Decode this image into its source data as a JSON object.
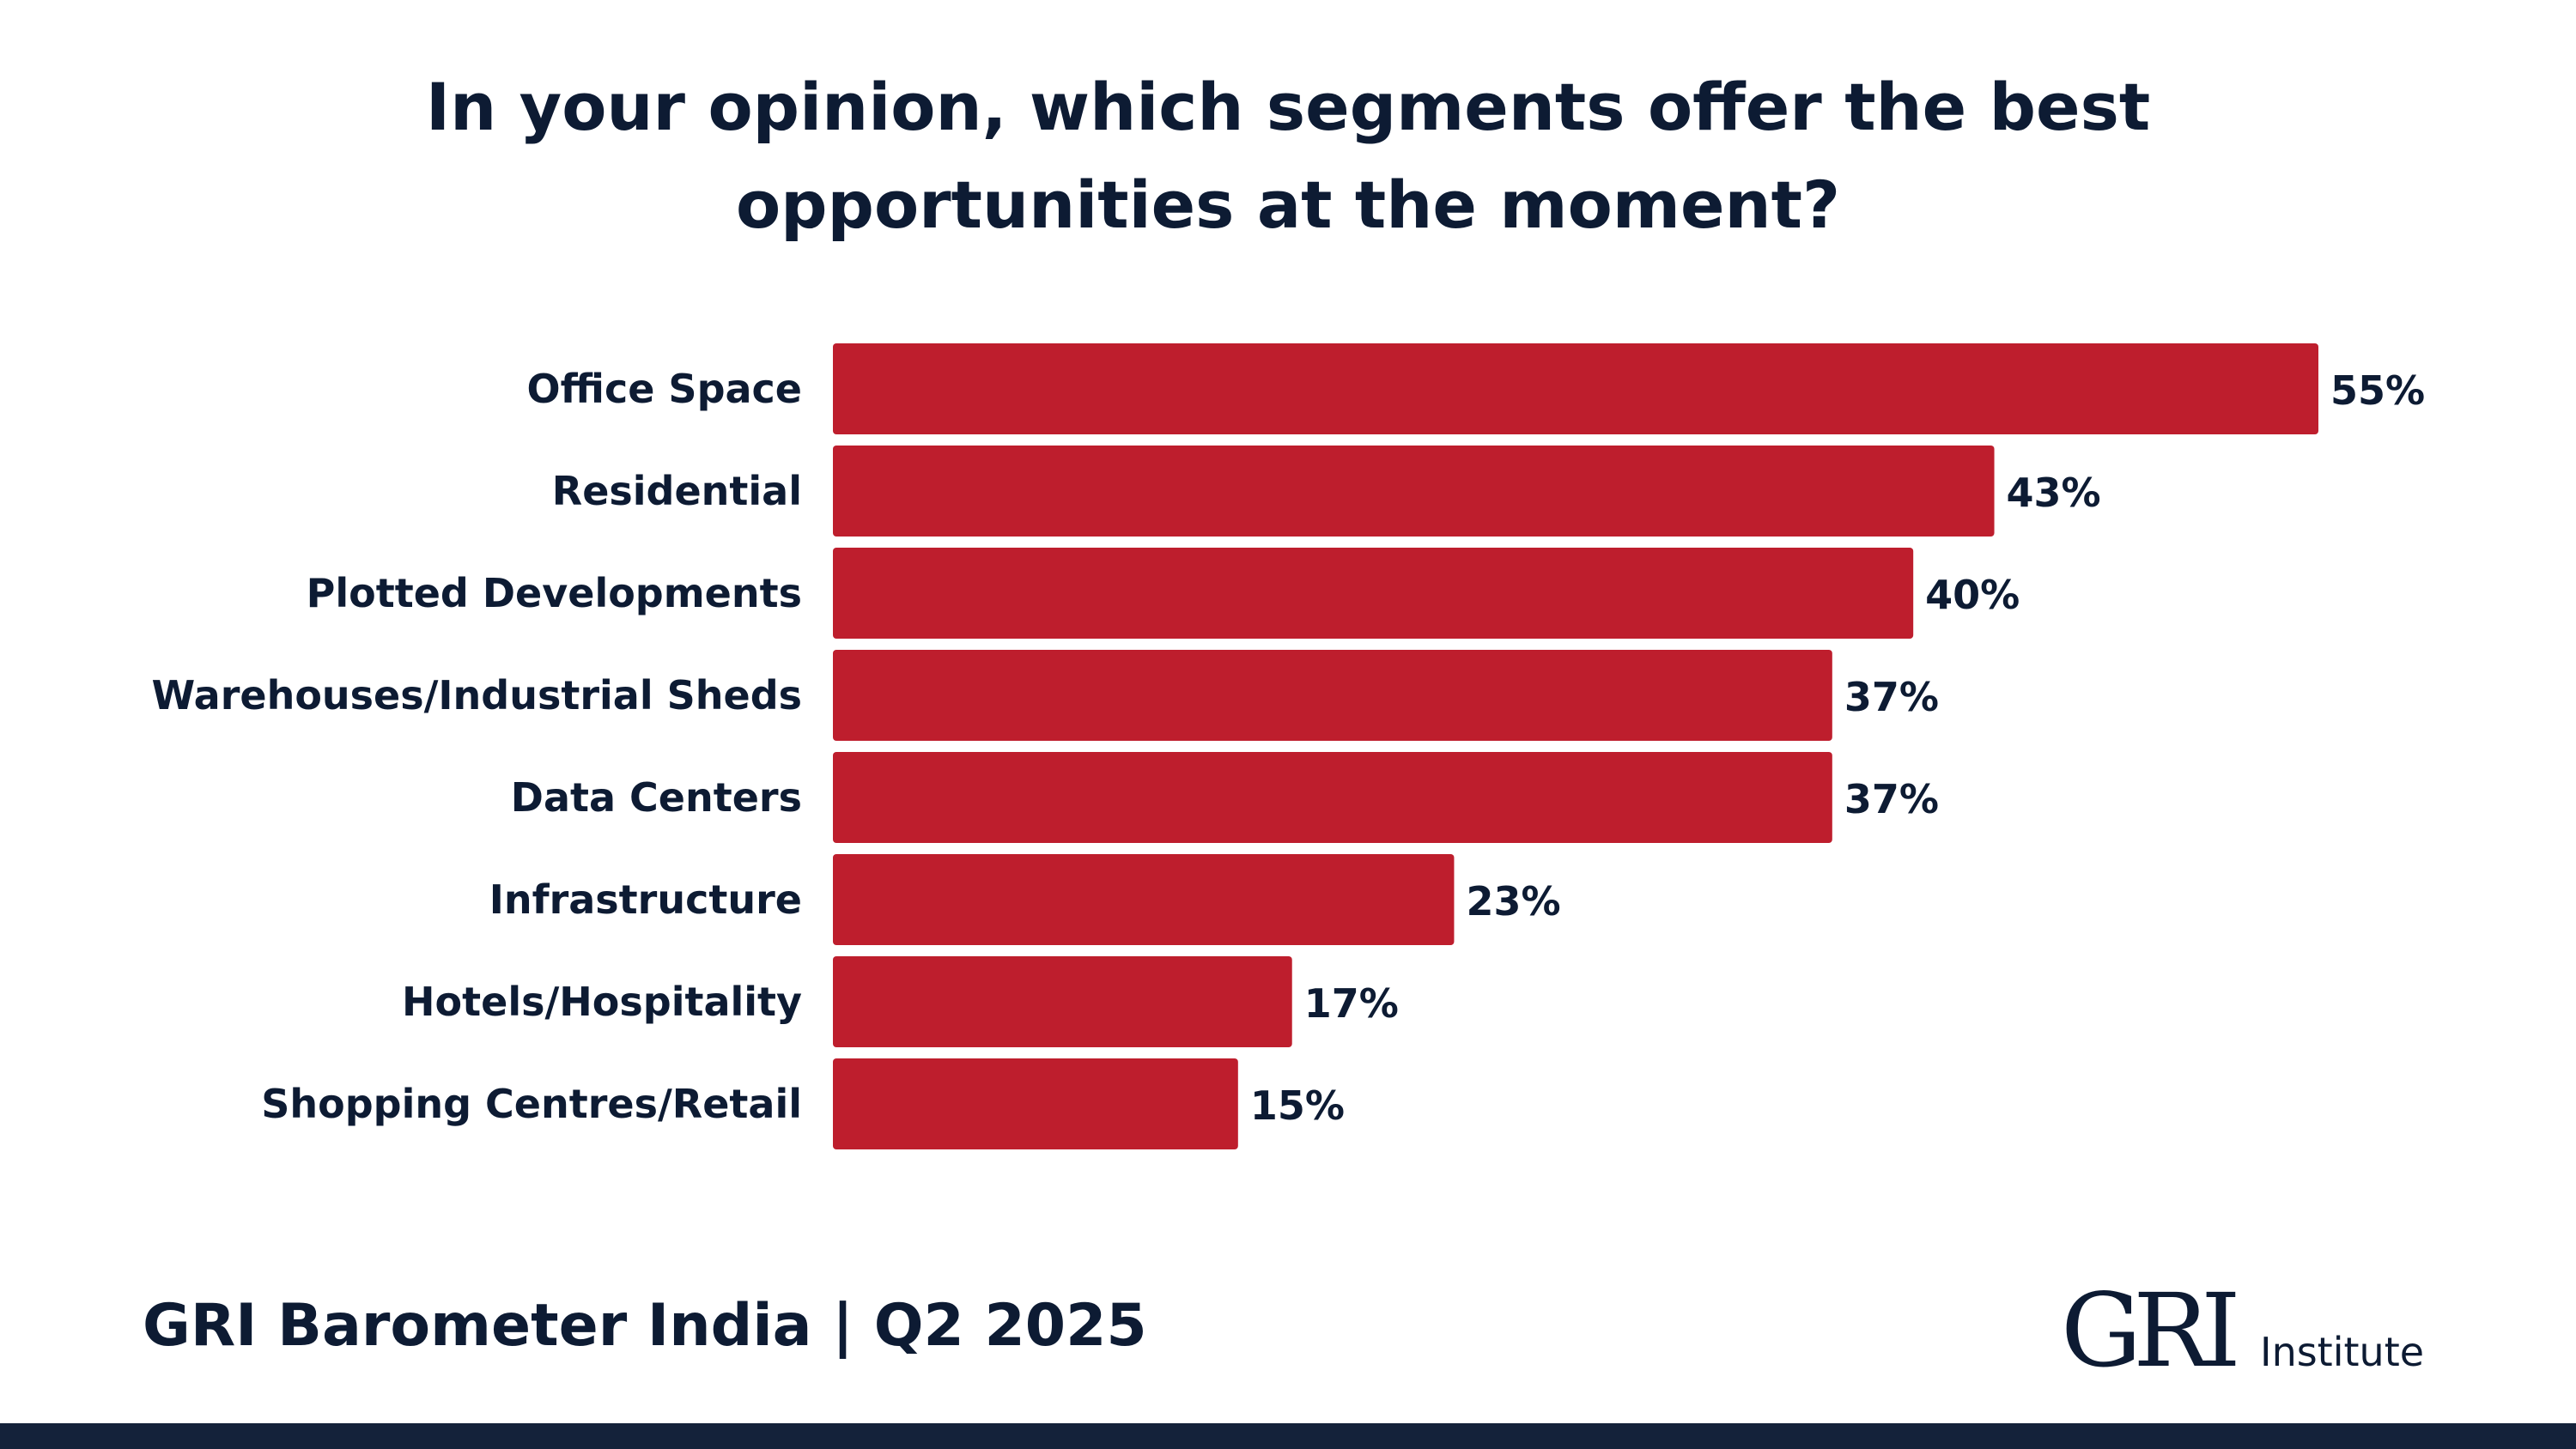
{
  "title": {
    "line1": "In your opinion, which segments offer the best",
    "line2": "opportunities at the moment?"
  },
  "chart_data": {
    "type": "bar",
    "orientation": "horizontal",
    "title": "In your opinion, which segments offer the best opportunities at the moment?",
    "categories": [
      "Office Space",
      "Residential",
      "Plotted Developments",
      "Warehouses/Industrial Sheds",
      "Data Centers",
      "Infrastructure",
      "Hotels/Hospitality",
      "Shopping Centres/Retail"
    ],
    "values": [
      55,
      43,
      40,
      37,
      37,
      23,
      17,
      15
    ],
    "value_labels": [
      "55%",
      "43%",
      "40%",
      "37%",
      "37%",
      "23%",
      "17%",
      "15%"
    ],
    "unit": "%",
    "xlim": [
      0,
      55
    ],
    "grid": false,
    "legend": "none",
    "bar_color": "#be1e2d"
  },
  "footer": {
    "title": "GRI Barometer India | Q2 2025",
    "logo_text": "GRI",
    "logo_suffix": "Institute"
  },
  "colors": {
    "bar": "#be1e2d",
    "text": "#0d1b33",
    "band": "#14223a"
  }
}
